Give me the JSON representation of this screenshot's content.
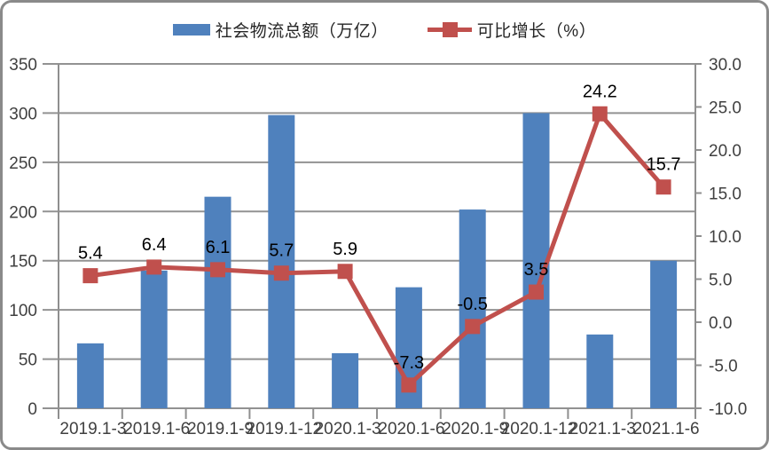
{
  "chart_data": {
    "type": "combo",
    "categories": [
      "2019.1-3",
      "2019.1-6",
      "2019.1-9",
      "2019.1-12",
      "2020.1-3",
      "2020.1-6",
      "2020.1-9",
      "2020.1-12",
      "2021.1-3",
      "2021.1-6"
    ],
    "series": [
      {
        "name": "社会物流总额（万亿）",
        "type": "bar",
        "axis": "left",
        "color": "#4f81bd",
        "values": [
          66,
          140,
          215,
          298,
          56,
          123,
          202,
          300,
          75,
          150
        ]
      },
      {
        "name": "可比增长（%）",
        "type": "line",
        "axis": "right",
        "color": "#c0504d",
        "values": [
          5.4,
          6.4,
          6.1,
          5.7,
          5.9,
          -7.3,
          -0.5,
          3.5,
          24.2,
          15.7
        ],
        "point_labels": [
          "5.4",
          "6.4",
          "6.1",
          "5.7",
          "5.9",
          "-7.3",
          "-0.5",
          "3.5",
          "24.2",
          "15.7"
        ]
      }
    ],
    "left_axis": {
      "min": 0,
      "max": 350,
      "step": 50,
      "tick_values": [
        0,
        50,
        100,
        150,
        200,
        250,
        300,
        350
      ],
      "tick_labels": [
        "0",
        "50",
        "100",
        "150",
        "200",
        "250",
        "300",
        "350"
      ]
    },
    "right_axis": {
      "min": -10,
      "max": 30,
      "step": 5,
      "tick_values": [
        -10,
        -5,
        0,
        5,
        10,
        15,
        20,
        25,
        30
      ],
      "tick_labels": [
        "-10.0",
        "-5.0",
        "0.0",
        "5.0",
        "10.0",
        "15.0",
        "20.0",
        "25.0",
        "30.0"
      ]
    },
    "grid": true,
    "legend_position": "top",
    "colors": {
      "bar": "#4f81bd",
      "line": "#c0504d",
      "gridline": "#929292",
      "axis_line": "#8f8f8f",
      "axis_text": "#404040",
      "data_label_text": "#000000",
      "frame_border": "#8a8a8a",
      "background": "#ffffff"
    }
  }
}
